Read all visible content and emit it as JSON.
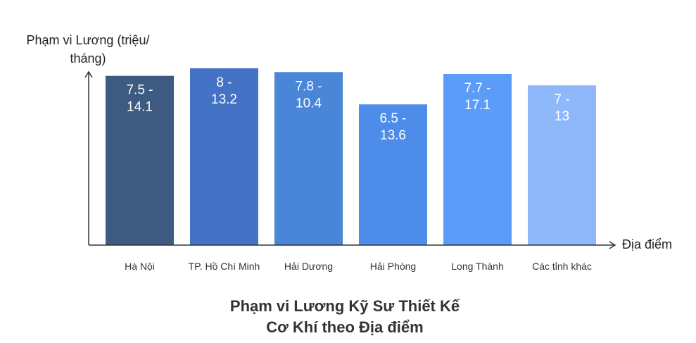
{
  "chart_data": {
    "type": "bar",
    "title_lines": [
      "Phạm vi Lương Kỹ Sư Thiết Kế",
      "Cơ Khí theo Địa điểm"
    ],
    "ylabel_lines": [
      "Phạm vi Lương (triệu/",
      "tháng)"
    ],
    "xlabel": "Địa điểm",
    "categories": [
      "Hà Nội",
      "TP. Hồ Chí Minh",
      "Hải Dương",
      "Hải Phòng",
      "Long Thành",
      "Các tỉnh khác"
    ],
    "labels": [
      [
        "7.5 -",
        "14.1"
      ],
      [
        "8 -",
        "13.2"
      ],
      [
        "7.8 -",
        "10.4"
      ],
      [
        "6.5 -",
        "13.6"
      ],
      [
        "7.7 -",
        "17.1"
      ],
      [
        "7 -",
        "13"
      ]
    ],
    "ranges": [
      [
        7.5,
        14.1
      ],
      [
        8,
        13.2
      ],
      [
        7.8,
        10.4
      ],
      [
        6.5,
        13.6
      ],
      [
        7.7,
        17.1
      ],
      [
        7,
        13
      ]
    ],
    "bar_heights_relative": [
      0.89,
      0.93,
      0.91,
      0.74,
      0.9,
      0.84
    ],
    "colors": [
      "#3d5a80",
      "#4472c4",
      "#4a86d8",
      "#4d8ce8",
      "#5a9cf8",
      "#8fb8fb"
    ],
    "grid": false,
    "legend": "none"
  }
}
